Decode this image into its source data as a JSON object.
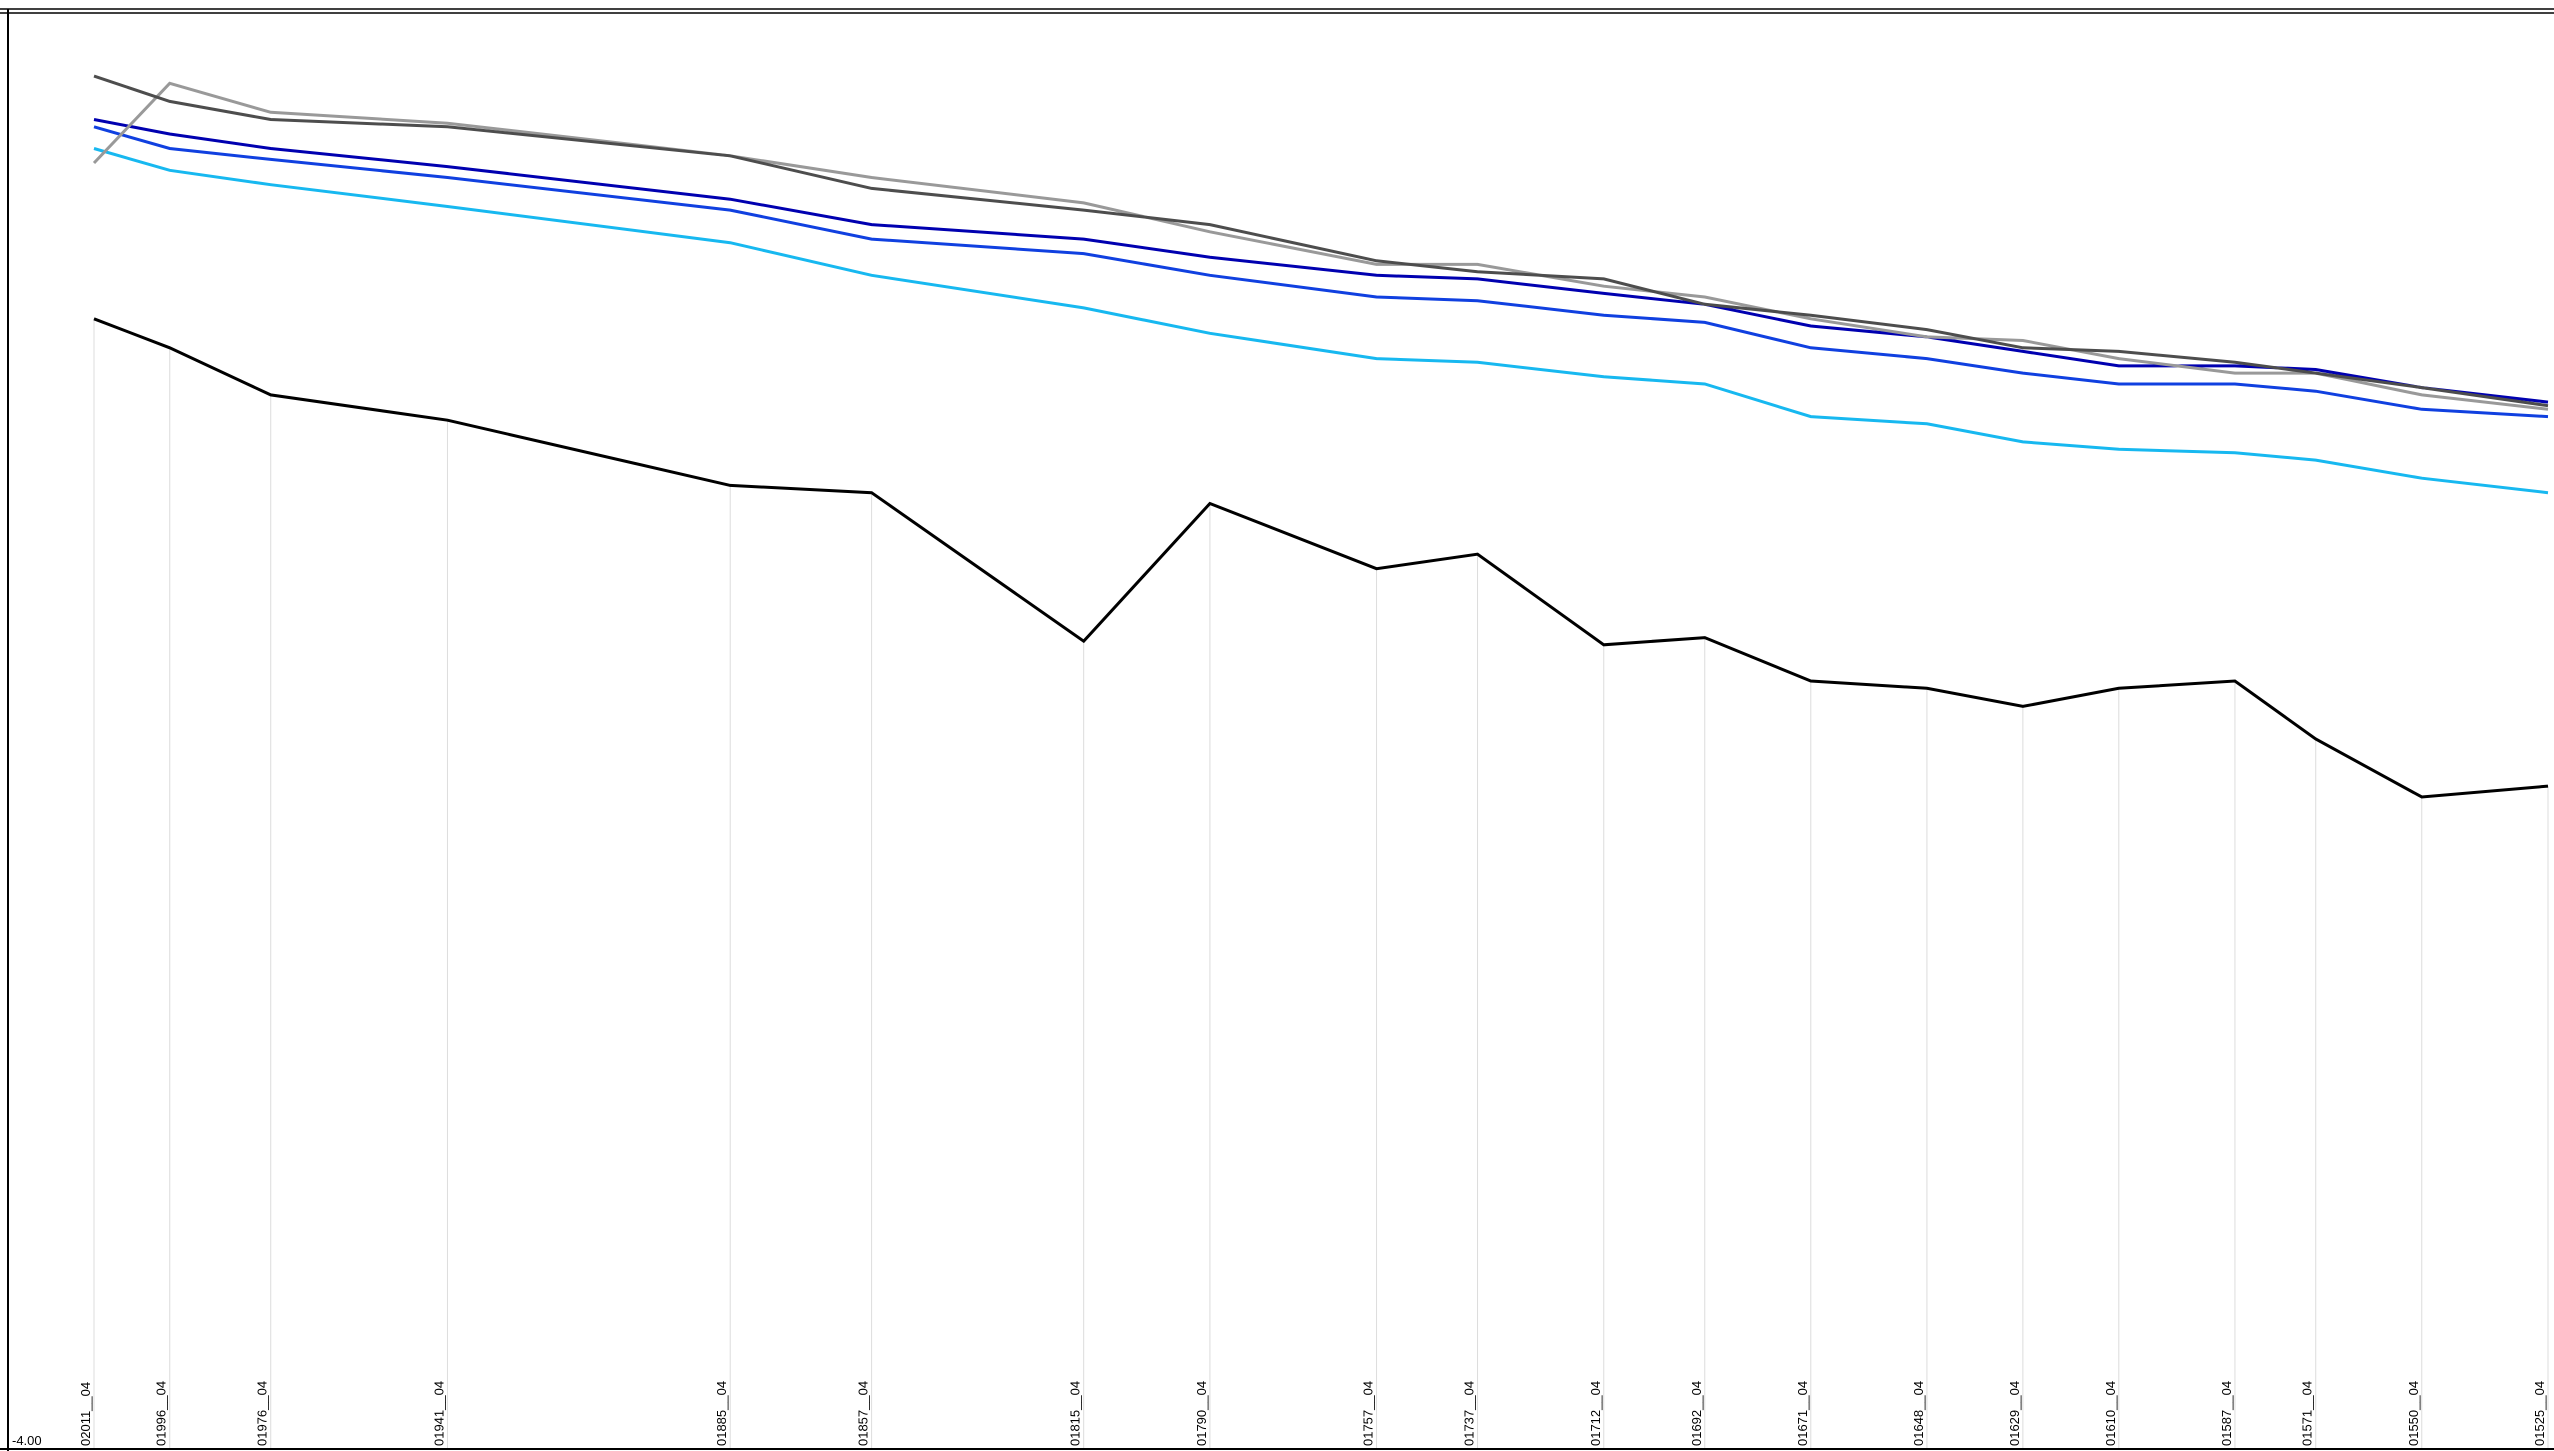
{
  "chart_data": {
    "type": "line",
    "title": "",
    "xlabel": "",
    "ylabel": "",
    "grid": "vertical lines at each category",
    "legend": "none",
    "y_tick_labels": [
      "-4.00"
    ],
    "ylim": [
      -4.0,
      0.0
    ],
    "categories": [
      "02011__04",
      "01996__04",
      "01976__04",
      "01941__04",
      "01885__04",
      "01857__04",
      "01815__04",
      "01790__04",
      "01757__04",
      "01737__04",
      "01712__04",
      "01692__04",
      "01671__04",
      "01648__04",
      "01629__04",
      "01610__04",
      "01587__04",
      "01571__04",
      "01550__04",
      "01525__04"
    ],
    "category_positions": [
      2011,
      1996,
      1976,
      1941,
      1885,
      1857,
      1815,
      1790,
      1757,
      1737,
      1712,
      1692,
      1671,
      1648,
      1629,
      1610,
      1587,
      1571,
      1550,
      1525
    ],
    "series": [
      {
        "color": "#000000",
        "values": [
          -0.88,
          -0.96,
          -1.09,
          -1.16,
          -1.34,
          -1.36,
          -1.77,
          -1.39,
          -1.57,
          -1.53,
          -1.78,
          -1.76,
          -1.88,
          -1.9,
          -1.95,
          -1.9,
          -1.88,
          -2.04,
          -2.2,
          -2.17
        ]
      },
      {
        "color": "#17b8f0",
        "values": [
          -0.41,
          -0.47,
          -0.51,
          -0.57,
          -0.67,
          -0.76,
          -0.85,
          -0.92,
          -0.99,
          -1.0,
          -1.04,
          -1.06,
          -1.15,
          -1.17,
          -1.22,
          -1.24,
          -1.25,
          -1.27,
          -1.32,
          -1.36
        ]
      },
      {
        "color": "#1040e0",
        "values": [
          -0.35,
          -0.41,
          -0.44,
          -0.49,
          -0.58,
          -0.66,
          -0.7,
          -0.76,
          -0.82,
          -0.83,
          -0.87,
          -0.89,
          -0.96,
          -0.99,
          -1.03,
          -1.06,
          -1.06,
          -1.08,
          -1.13,
          -1.15
        ]
      },
      {
        "color": "#0000b0",
        "values": [
          -0.33,
          -0.37,
          -0.41,
          -0.46,
          -0.55,
          -0.62,
          -0.66,
          -0.71,
          -0.76,
          -0.77,
          -0.81,
          -0.84,
          -0.9,
          -0.93,
          -0.97,
          -1.01,
          -1.01,
          -1.02,
          -1.07,
          -1.11
        ]
      },
      {
        "color": "#999999",
        "values": [
          -0.45,
          -0.23,
          -0.31,
          -0.34,
          -0.43,
          -0.49,
          -0.56,
          -0.64,
          -0.73,
          -0.73,
          -0.79,
          -0.82,
          -0.88,
          -0.93,
          -0.94,
          -0.99,
          -1.03,
          -1.03,
          -1.09,
          -1.13
        ]
      },
      {
        "color": "#4d4d4d",
        "values": [
          -0.21,
          -0.28,
          -0.33,
          -0.35,
          -0.43,
          -0.52,
          -0.58,
          -0.62,
          -0.72,
          -0.75,
          -0.77,
          -0.84,
          -0.87,
          -0.91,
          -0.96,
          -0.97,
          -1.0,
          -1.03,
          -1.07,
          -1.12
        ]
      }
    ]
  }
}
